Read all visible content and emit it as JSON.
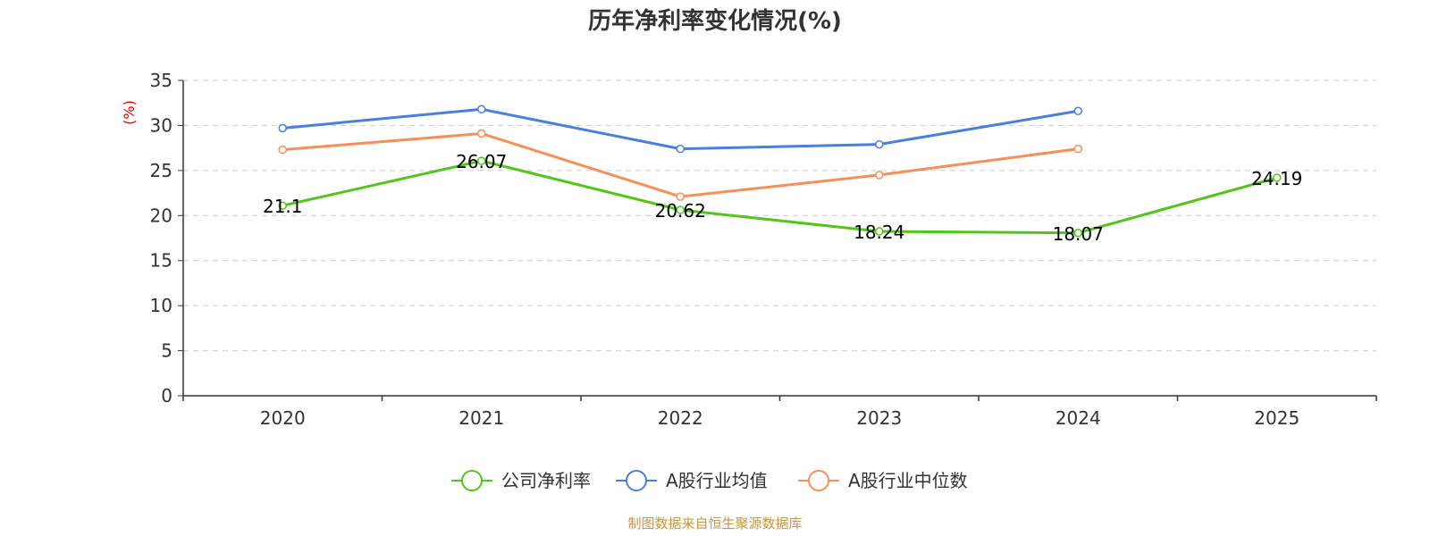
{
  "chart_data": {
    "type": "line",
    "title": "历年净利率变化情况(%)",
    "ylabel": "(%)",
    "xlabel": "",
    "categories": [
      "2020",
      "2021",
      "2022",
      "2023",
      "2024",
      "2025"
    ],
    "ylim": [
      0,
      35
    ],
    "yticks": [
      0,
      5,
      10,
      15,
      20,
      25,
      30,
      35
    ],
    "grid": true,
    "legend_position": "bottom-center",
    "series": [
      {
        "name": "公司净利率",
        "color": "#52c41a",
        "values": [
          21.1,
          26.07,
          20.62,
          18.24,
          18.07,
          24.19
        ],
        "data_labels": [
          "21.1",
          "26.07",
          "20.62",
          "18.24",
          "18.07",
          "24.19"
        ]
      },
      {
        "name": "A股行业均值",
        "color": "#4a7fde",
        "values": [
          29.7,
          31.8,
          27.4,
          27.9,
          31.6,
          null
        ]
      },
      {
        "name": "A股行业中位数",
        "color": "#f88e5a",
        "values": [
          27.3,
          29.1,
          22.1,
          24.5,
          27.4,
          null
        ]
      }
    ],
    "source": "制图数据来自恒生聚源数据库"
  }
}
